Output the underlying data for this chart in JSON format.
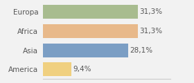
{
  "categories": [
    "Europa",
    "Africa",
    "Asia",
    "America"
  ],
  "values": [
    31.3,
    31.3,
    28.1,
    9.4
  ],
  "labels": [
    "31,3%",
    "31,3%",
    "28,1%",
    "9,4%"
  ],
  "bar_colors": [
    "#a8bc8f",
    "#e8b98a",
    "#7b9ec4",
    "#f0d080"
  ],
  "background_color": "#f2f2f2",
  "xlim": [
    0,
    42
  ],
  "bar_height": 0.72,
  "label_fontsize": 7.5,
  "category_fontsize": 7.5,
  "text_color": "#555555"
}
